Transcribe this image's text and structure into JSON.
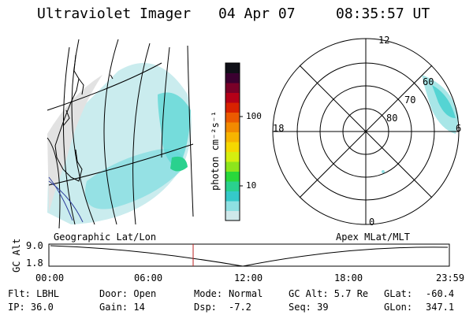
{
  "header": {
    "instrument": "Ultraviolet Imager",
    "date": "04 Apr 07",
    "time": "08:35:57 UT"
  },
  "colorbar": {
    "unit_label": "photon cm⁻²s⁻¹",
    "ticks": [
      "100",
      "10"
    ],
    "colors": [
      "#cfe8ea",
      "#8fe0e2",
      "#35c9c9",
      "#2ad18e",
      "#29d83b",
      "#8de51c",
      "#d5ee0f",
      "#f5d800",
      "#f7b400",
      "#f28a00",
      "#eb5a00",
      "#d82200",
      "#b50018",
      "#7a0028",
      "#3b0030",
      "#101018"
    ]
  },
  "geo_panel": {
    "caption": "Geographic Lat/Lon"
  },
  "polar_panel": {
    "caption": "Apex MLat/MLT",
    "mlt_labels": {
      "top": "12",
      "left": "18",
      "right": "6",
      "bottom": "0"
    },
    "mlat_labels": [
      "60",
      "70",
      "80"
    ]
  },
  "altitude_track": {
    "axis_label": "GC Alt",
    "y_ticks": [
      "9.0",
      "1.8"
    ],
    "x_ticks": [
      "00:00",
      "06:00",
      "12:00",
      "18:00",
      "23:59"
    ],
    "current_marker_time": "08:35:57"
  },
  "info": {
    "filter": "Flt: LBHL",
    "ip": "IP: 36.0",
    "door": "Door: Open",
    "gain": "Gain: 14",
    "mode_label": "Mode:",
    "mode_value": "Normal",
    "dsp_label": "Dsp:",
    "dsp_value": "-7.2",
    "gc_alt": "GC Alt: 5.7 Re",
    "seq": "Seq: 39",
    "glat_label": "GLat:",
    "glat_value": "-60.4",
    "glon_label": "GLon:",
    "glon_value": "347.1"
  }
}
